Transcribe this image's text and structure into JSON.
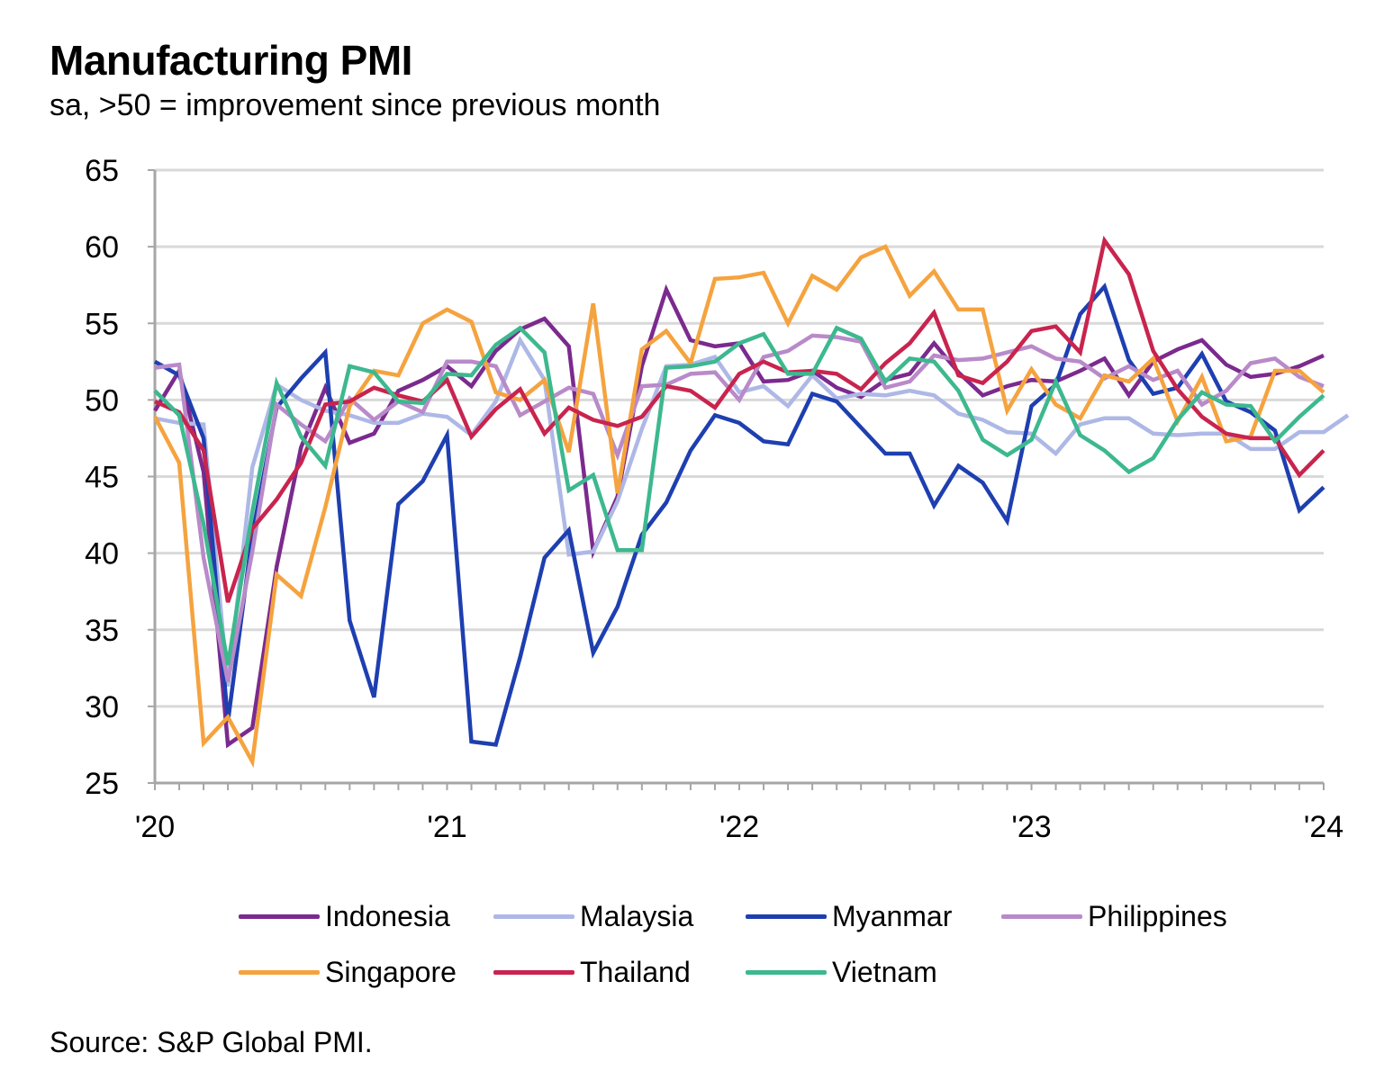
{
  "title": "Manufacturing PMI",
  "subtitle": "sa, >50 = improvement since previous month",
  "source": "Source: S&P Global PMI.",
  "chart_data": {
    "type": "line",
    "title": "Manufacturing PMI",
    "subtitle": "sa, >50 = improvement since previous month",
    "xlabel": "",
    "ylabel": "",
    "ylim": [
      25,
      65
    ],
    "yticks": [
      25,
      30,
      35,
      40,
      45,
      50,
      55,
      60,
      65
    ],
    "ytick_labels": [
      "25",
      "30",
      "35",
      "40",
      "45",
      "50",
      "55",
      "60",
      "65"
    ],
    "xtick_labels": [
      "'20",
      "'21",
      "'22",
      "'23",
      "'24"
    ],
    "xtick_month_index": [
      0,
      12,
      24,
      36,
      48
    ],
    "x_unit": "months since Jan 2020",
    "grid": true,
    "legend_position": "bottom",
    "series": [
      {
        "name": "Indonesia",
        "color": "#7B2A8E",
        "values": [
          49.3,
          51.9,
          45.3,
          27.5,
          28.6,
          39.1,
          46.9,
          50.8,
          47.2,
          47.8,
          50.6,
          51.3,
          52.2,
          50.9,
          53.2,
          54.6,
          55.3,
          53.5,
          40.1,
          43.7,
          52.2,
          57.2,
          53.9,
          53.5,
          53.7,
          51.2,
          51.3,
          51.9,
          50.8,
          50.2,
          51.3,
          51.7,
          53.7,
          51.8,
          50.3,
          50.9,
          51.3,
          51.2,
          51.9,
          52.7,
          50.3,
          52.5,
          53.3,
          53.9,
          52.3,
          51.5,
          51.7,
          52.2,
          52.9
        ]
      },
      {
        "name": "Malaysia",
        "color": "#AEB8E6",
        "values": [
          48.8,
          48.5,
          48.4,
          31.3,
          45.6,
          51.0,
          50.0,
          49.3,
          49.0,
          48.5,
          48.5,
          49.1,
          48.9,
          47.7,
          49.9,
          53.9,
          51.3,
          39.9,
          40.1,
          43.4,
          48.1,
          52.2,
          52.3,
          52.8,
          50.5,
          50.9,
          49.6,
          51.6,
          50.1,
          50.4,
          50.3,
          50.6,
          50.3,
          49.1,
          48.7,
          47.9,
          47.8,
          46.5,
          48.4,
          48.8,
          48.8,
          47.8,
          47.7,
          47.8,
          47.8,
          46.8,
          46.8,
          47.9,
          47.9,
          49.0
        ]
      },
      {
        "name": "Myanmar",
        "color": "#1E3FB0",
        "values": [
          52.5,
          51.6,
          47.5,
          29.0,
          41.2,
          49.5,
          51.4,
          53.1,
          35.6,
          30.6,
          43.2,
          44.7,
          47.7,
          27.7,
          27.5,
          33.2,
          39.7,
          41.5,
          33.5,
          36.5,
          41.2,
          43.3,
          46.7,
          49.0,
          48.5,
          47.3,
          47.1,
          50.4,
          49.9,
          48.2,
          46.5,
          46.5,
          43.1,
          45.7,
          44.6,
          42.1,
          49.6,
          51.0,
          55.6,
          57.4,
          52.6,
          50.4,
          50.8,
          53.0,
          49.9,
          49.2,
          48.0,
          42.8,
          44.3
        ]
      },
      {
        "name": "Philippines",
        "color": "#B98AC9",
        "values": [
          52.1,
          52.3,
          39.7,
          31.6,
          40.1,
          49.7,
          48.4,
          47.3,
          50.1,
          48.7,
          49.9,
          49.2,
          52.5,
          52.5,
          52.2,
          49.0,
          49.9,
          50.8,
          50.4,
          46.4,
          50.9,
          51.0,
          51.7,
          51.8,
          50.0,
          52.8,
          53.2,
          54.2,
          54.1,
          53.8,
          50.8,
          51.2,
          52.9,
          52.6,
          52.7,
          53.1,
          53.5,
          52.7,
          52.5,
          51.4,
          52.2,
          51.3,
          51.9,
          49.7,
          50.6,
          52.4,
          52.7,
          51.5,
          50.9
        ]
      },
      {
        "name": "Singapore",
        "color": "#F5A33F",
        "values": [
          48.9,
          45.9,
          27.6,
          29.3,
          26.4,
          38.6,
          37.2,
          43.0,
          49.6,
          51.9,
          51.6,
          55.0,
          55.9,
          55.1,
          50.5,
          50.0,
          51.3,
          46.6,
          56.3,
          43.9,
          53.3,
          54.5,
          52.4,
          57.9,
          58.0,
          58.3,
          55.0,
          58.1,
          57.2,
          59.3,
          60.0,
          56.8,
          58.4,
          55.9,
          55.9,
          49.3,
          52.0,
          49.7,
          48.8,
          51.6,
          51.2,
          52.7,
          48.6,
          51.5,
          47.3,
          47.6,
          51.9,
          51.9,
          50.5
        ]
      },
      {
        "name": "Thailand",
        "color": "#C8244E",
        "values": [
          49.9,
          49.2,
          46.7,
          36.8,
          41.6,
          43.5,
          45.9,
          49.7,
          49.9,
          50.8,
          50.3,
          49.9,
          51.3,
          47.6,
          49.4,
          50.7,
          47.8,
          49.5,
          48.7,
          48.3,
          48.9,
          50.9,
          50.6,
          49.5,
          51.7,
          52.5,
          51.8,
          51.9,
          51.7,
          50.7,
          52.4,
          53.7,
          55.7,
          51.6,
          51.1,
          52.5,
          54.5,
          54.8,
          53.1,
          60.4,
          58.2,
          53.2,
          50.7,
          48.9,
          47.8,
          47.5,
          47.5,
          45.1,
          46.7
        ]
      },
      {
        "name": "Vietnam",
        "color": "#3DB88F",
        "values": [
          50.6,
          49.0,
          41.9,
          32.7,
          42.7,
          51.1,
          47.6,
          45.7,
          52.2,
          51.8,
          49.9,
          49.8,
          51.7,
          51.6,
          53.6,
          54.7,
          53.1,
          44.1,
          45.1,
          40.2,
          40.2,
          52.1,
          52.2,
          52.5,
          53.7,
          54.3,
          51.7,
          51.7,
          54.7,
          54.0,
          51.2,
          52.7,
          52.5,
          50.6,
          47.4,
          46.4,
          47.4,
          51.2,
          47.7,
          46.7,
          45.3,
          46.2,
          48.7,
          50.5,
          49.7,
          49.6,
          47.3,
          48.9,
          50.3
        ]
      }
    ]
  }
}
